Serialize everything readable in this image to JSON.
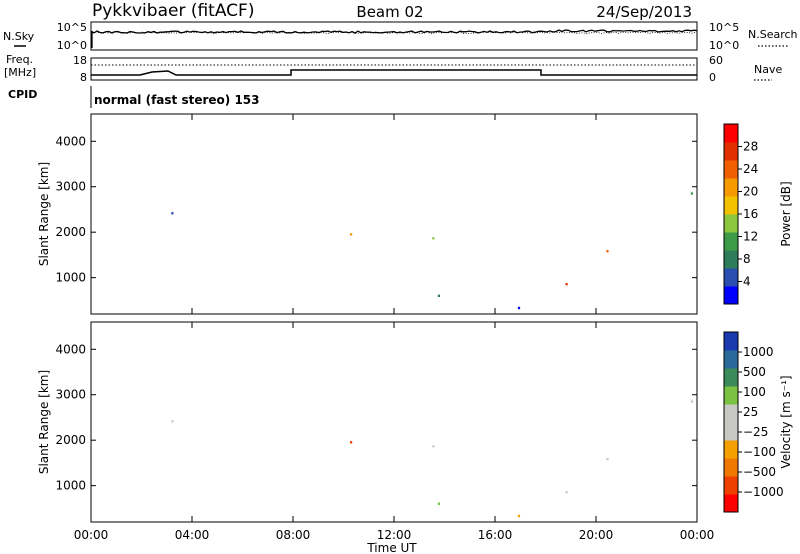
{
  "header": {
    "station": "Pykkvibaer (fitACF)",
    "beam": "Beam 02",
    "date": "24/Sep/2013"
  },
  "strip_labels": {
    "nsky": "N.Sky",
    "nsearch": "N.Search",
    "freq_top": "Freq.",
    "freq_unit": "[MHz]",
    "nave": "Nave",
    "cpid": "CPID",
    "cpid_value": "normal (fast stereo) 153",
    "nsky_ticks": [
      "10^5",
      "10^0"
    ],
    "nsearch_ticks": [
      "10^5",
      "10^0"
    ],
    "freq_ticks": [
      "18",
      "8"
    ],
    "nave_ticks": [
      "60",
      "0"
    ]
  },
  "colors": {
    "power": [
      "#0000ff",
      "#2a4fb0",
      "#2e7d5a",
      "#3d9b48",
      "#8cc63f",
      "#f2c200",
      "#f59a00",
      "#f06000",
      "#e03000",
      "#ff0000"
    ],
    "velocity": [
      "#ff0000",
      "#f04000",
      "#f07800",
      "#f5a000",
      "#c8c8c4",
      "#c8c8c4",
      "#7cc242",
      "#3a8a5a",
      "#2a6a9a",
      "#1a3ab0"
    ]
  },
  "chart_data": [
    {
      "type": "heatmap",
      "name": "power",
      "ylabel": "Slant Range [km]",
      "ylim": [
        200,
        4600
      ],
      "yticks": [
        "1000",
        "2000",
        "3000",
        "4000"
      ],
      "colorbar_label": "Power [dB]",
      "colorbar_ticks": [
        "4",
        "8",
        "12",
        "16",
        "20",
        "24",
        "28"
      ],
      "colorbar_range": [
        0,
        32
      ]
    },
    {
      "type": "heatmap",
      "name": "velocity",
      "ylabel": "Slant Range [km]",
      "ylim": [
        200,
        4600
      ],
      "yticks": [
        "1000",
        "2000",
        "3000",
        "4000"
      ],
      "colorbar_label": "Velocity [m s⁻¹]",
      "colorbar_ticks": [
        "1000",
        "500",
        "100",
        "25",
        "−25",
        "−100",
        "−500",
        "−1000"
      ]
    }
  ],
  "xaxis": {
    "label": "Time UT",
    "ticks": [
      "00:00",
      "04:00",
      "08:00",
      "12:00",
      "16:00",
      "20:00",
      "00:00"
    ]
  }
}
